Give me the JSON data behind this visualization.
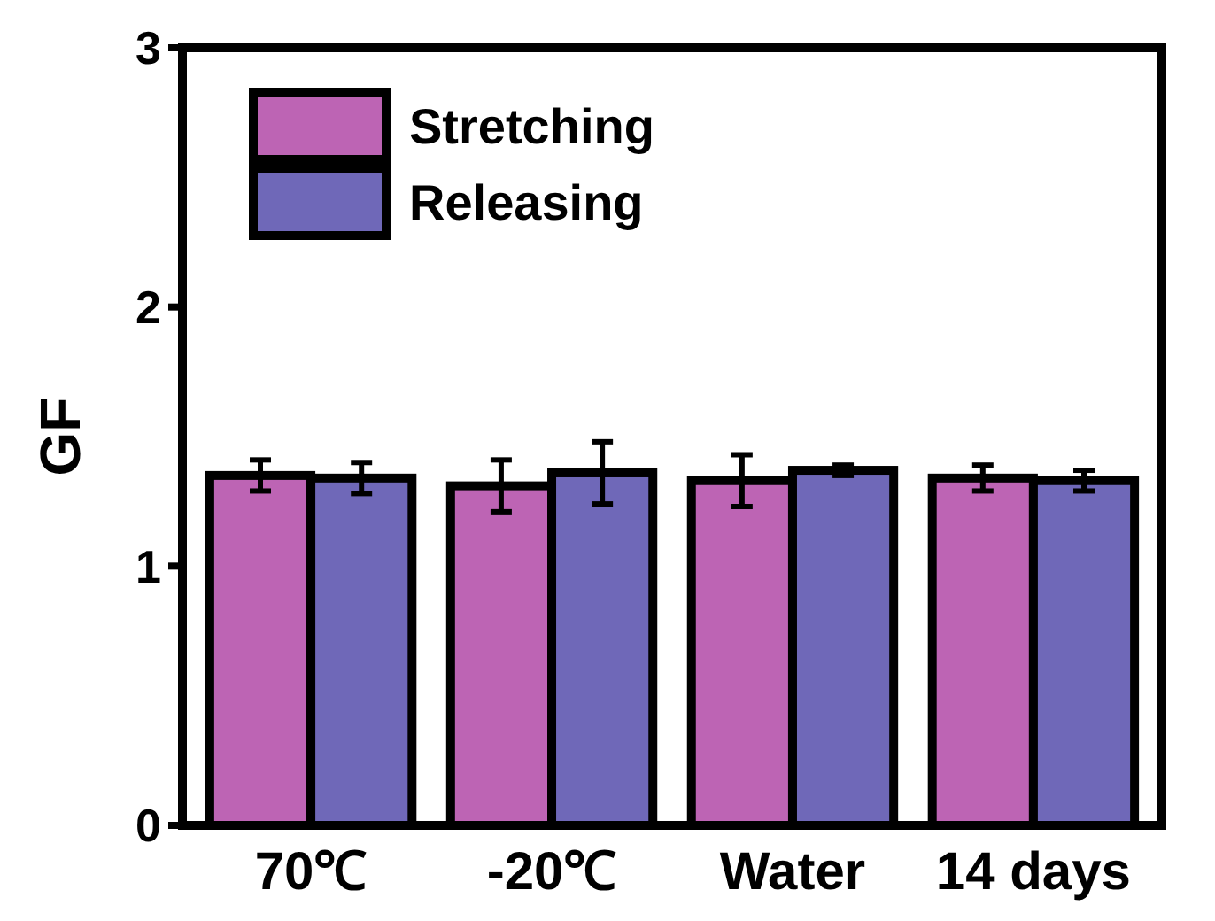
{
  "chart_data": {
    "type": "bar",
    "ylabel": "GF",
    "categories": [
      "70℃",
      "-20℃",
      "Water",
      "14 days"
    ],
    "series": [
      {
        "name": "Stretching",
        "color": "#bd64b4",
        "values": [
          1.35,
          1.31,
          1.33,
          1.34
        ],
        "errors": [
          0.06,
          0.1,
          0.1,
          0.05
        ]
      },
      {
        "name": "Releasing",
        "color": "#6f68b8",
        "values": [
          1.34,
          1.36,
          1.37,
          1.33
        ],
        "errors": [
          0.06,
          0.12,
          0.02,
          0.04
        ]
      }
    ],
    "ylim": [
      0,
      3
    ],
    "yticks": [
      0,
      1,
      2,
      3
    ],
    "legend": "top left"
  }
}
